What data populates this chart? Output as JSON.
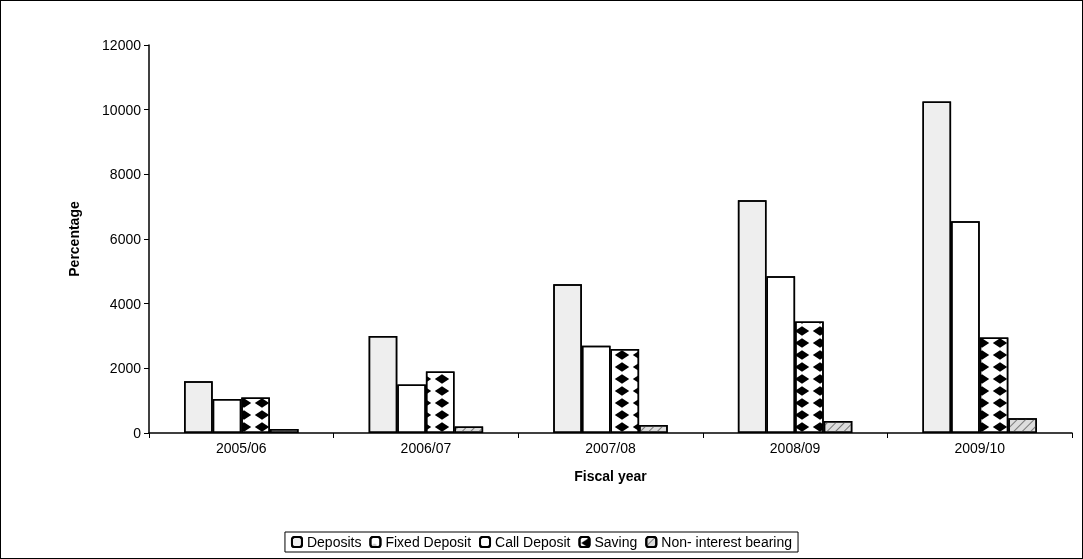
{
  "chart_data": {
    "type": "bar",
    "xlabel": "Fiscal year",
    "ylabel": "Percentage",
    "categories": [
      "2005/06",
      "2006/07",
      "2007/08",
      "2008/09",
      "2009/10"
    ],
    "series": [
      {
        "name": "Deposits",
        "color": "#eeeeee",
        "values": [
          1600,
          3000,
          4600,
          7200,
          10250
        ]
      },
      {
        "name": "Fixed Deposit",
        "color": "#ffffff",
        "values": [
          null,
          null,
          null,
          null,
          null
        ]
      },
      {
        "name": "Call Deposit",
        "color": "#ffffff",
        "values": [
          1050,
          1500,
          2700,
          4850,
          6550
        ]
      },
      {
        "name": "Saving",
        "color": "#ffffff",
        "values": [
          1100,
          1900,
          2600,
          3450,
          2950
        ]
      },
      {
        "name": "Non- interest bearing",
        "color": "#dddddd",
        "values": [
          120,
          200,
          250,
          370,
          460
        ]
      }
    ],
    "ylim": [
      0,
      12000
    ],
    "yticks": [
      0,
      2000,
      4000,
      6000,
      8000,
      10000,
      12000
    ],
    "grid": false,
    "legend": "bottom"
  }
}
